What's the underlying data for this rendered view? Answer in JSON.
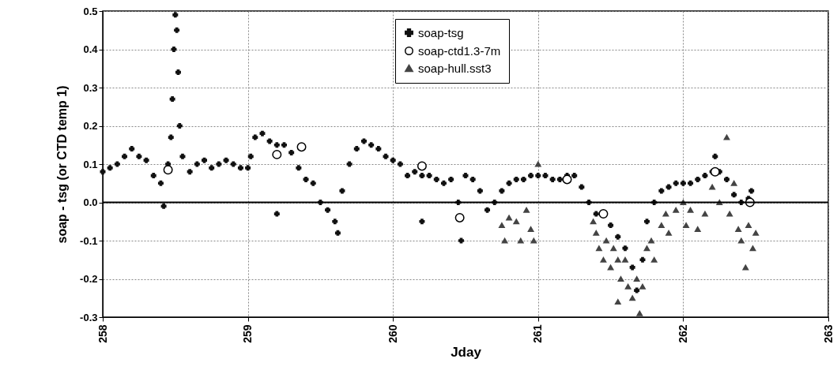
{
  "chart_data": {
    "type": "scatter",
    "xlabel": "Jday",
    "ylabel": "soap - tsg (or CTD temp 1)",
    "xlim": [
      258,
      263
    ],
    "xticks": [
      258,
      259,
      260,
      261,
      262,
      263
    ],
    "ylim": [
      -0.3,
      0.5
    ],
    "yticks": [
      {
        "value": -0.3,
        "label": "-0.3"
      },
      {
        "value": -0.2,
        "label": "-0.2"
      },
      {
        "value": -0.1,
        "label": "-0.1"
      },
      {
        "value": 0,
        "label": "0.0"
      },
      {
        "value": 0.1,
        "label": "0.1"
      },
      {
        "value": 0.2,
        "label": "0.2"
      },
      {
        "value": 0.3,
        "label": "0.3"
      },
      {
        "value": 0.4,
        "label": "0.4"
      },
      {
        "value": 0.5,
        "label": "0.5"
      }
    ],
    "grid": true,
    "legend": "top",
    "ref_lines": [
      {
        "axis": "y",
        "value": 0,
        "color": "#000000"
      }
    ],
    "series": [
      {
        "name": "soap-tsg",
        "color": "#111111",
        "marker": "cross",
        "x": [
          258.0,
          258.05,
          258.1,
          258.15,
          258.2,
          258.25,
          258.3,
          258.35,
          258.4,
          258.42,
          258.45,
          258.47,
          258.48,
          258.49,
          258.5,
          258.51,
          258.52,
          258.53,
          258.55,
          258.6,
          258.65,
          258.7,
          258.75,
          258.8,
          258.85,
          258.9,
          258.95,
          259.0,
          259.02,
          259.05,
          259.1,
          259.15,
          259.2,
          259.2,
          259.25,
          259.3,
          259.35,
          259.4,
          259.45,
          259.5,
          259.55,
          259.6,
          259.62,
          259.65,
          259.7,
          259.75,
          259.8,
          259.85,
          259.9,
          259.95,
          260.0,
          260.05,
          260.1,
          260.15,
          260.2,
          260.2,
          260.25,
          260.3,
          260.35,
          260.4,
          260.45,
          260.47,
          260.5,
          260.55,
          260.6,
          260.65,
          260.7,
          260.75,
          260.8,
          260.85,
          260.9,
          260.95,
          261.0,
          261.05,
          261.1,
          261.15,
          261.2,
          261.25,
          261.3,
          261.35,
          261.4,
          261.5,
          261.55,
          261.6,
          261.65,
          261.68,
          261.72,
          261.75,
          261.8,
          261.85,
          261.9,
          261.95,
          262.0,
          262.05,
          262.1,
          262.15,
          262.2,
          262.22,
          262.25,
          262.3,
          262.35,
          262.4,
          262.45,
          262.47
        ],
        "values": [
          0.08,
          0.09,
          0.1,
          0.12,
          0.14,
          0.12,
          0.11,
          0.07,
          0.05,
          -0.01,
          0.1,
          0.17,
          0.27,
          0.4,
          0.49,
          0.45,
          0.34,
          0.2,
          0.12,
          0.08,
          0.1,
          0.11,
          0.09,
          0.1,
          0.11,
          0.1,
          0.09,
          0.09,
          0.12,
          0.17,
          0.18,
          0.16,
          0.15,
          -0.03,
          0.15,
          0.13,
          0.09,
          0.06,
          0.05,
          0.0,
          -0.02,
          -0.05,
          -0.08,
          0.03,
          0.1,
          0.14,
          0.16,
          0.15,
          0.14,
          0.12,
          0.11,
          0.1,
          0.07,
          0.08,
          0.07,
          -0.05,
          0.07,
          0.06,
          0.05,
          0.06,
          0.0,
          -0.1,
          0.07,
          0.06,
          0.03,
          -0.02,
          0.0,
          0.03,
          0.05,
          0.06,
          0.06,
          0.07,
          0.07,
          0.07,
          0.06,
          0.06,
          0.07,
          0.07,
          0.04,
          0.0,
          -0.03,
          -0.06,
          -0.09,
          -0.12,
          -0.17,
          -0.23,
          -0.15,
          -0.05,
          0.0,
          0.03,
          0.04,
          0.05,
          0.05,
          0.05,
          0.06,
          0.07,
          0.08,
          0.12,
          0.08,
          0.06,
          0.02,
          0.0,
          0.01,
          0.03
        ]
      },
      {
        "name": "soap-ctd1.3-7m",
        "color": "#000000",
        "marker": "circle",
        "x": [
          258.45,
          259.2,
          259.37,
          260.2,
          260.46,
          261.2,
          261.45,
          262.22,
          262.46
        ],
        "values": [
          0.085,
          0.125,
          0.145,
          0.095,
          -0.04,
          0.06,
          -0.03,
          0.08,
          0.0
        ]
      },
      {
        "name": "soap-hull.sst3",
        "color": "#444444",
        "marker": "triangle",
        "x": [
          260.75,
          260.77,
          260.8,
          260.85,
          260.88,
          260.92,
          260.95,
          260.97,
          261.0,
          261.38,
          261.4,
          261.42,
          261.45,
          261.47,
          261.5,
          261.52,
          261.55,
          261.55,
          261.57,
          261.6,
          261.62,
          261.65,
          261.68,
          261.7,
          261.72,
          261.75,
          261.78,
          261.8,
          261.85,
          261.88,
          261.9,
          261.95,
          262.0,
          262.02,
          262.05,
          262.1,
          262.15,
          262.2,
          262.25,
          262.3,
          262.32,
          262.35,
          262.38,
          262.4,
          262.43,
          262.45,
          262.48,
          262.5
        ],
        "values": [
          -0.06,
          -0.1,
          -0.04,
          -0.05,
          -0.1,
          -0.02,
          -0.07,
          -0.1,
          0.1,
          -0.05,
          -0.08,
          -0.12,
          -0.15,
          -0.1,
          -0.17,
          -0.12,
          -0.15,
          -0.26,
          -0.2,
          -0.15,
          -0.22,
          -0.25,
          -0.2,
          -0.29,
          -0.22,
          -0.12,
          -0.1,
          -0.15,
          -0.06,
          -0.03,
          -0.08,
          -0.02,
          0.0,
          -0.06,
          -0.02,
          -0.07,
          -0.03,
          0.04,
          0.0,
          0.17,
          -0.03,
          0.05,
          -0.07,
          -0.1,
          -0.17,
          -0.06,
          -0.12,
          -0.08
        ]
      }
    ]
  }
}
